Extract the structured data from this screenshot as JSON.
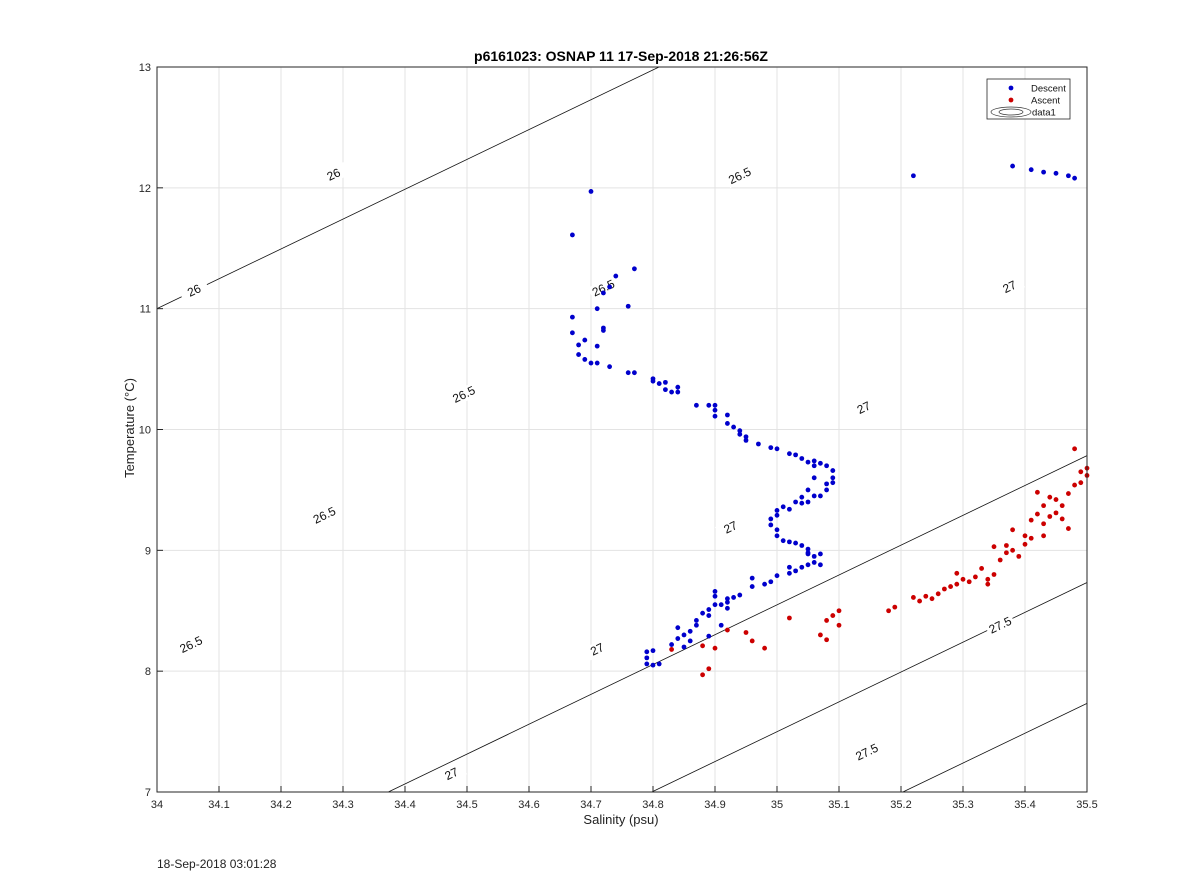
{
  "chart_data": {
    "type": "scatter",
    "title": "p6161023: OSNAP 11 17-Sep-2018 21:26:56Z",
    "xlabel": "Salinity (psu)",
    "ylabel": "Temperature (°C)",
    "xlim": [
      34,
      35.5
    ],
    "ylim": [
      7,
      13
    ],
    "xticks": [
      34,
      34.1,
      34.2,
      34.3,
      34.4,
      34.5,
      34.6,
      34.7,
      34.8,
      34.9,
      35,
      35.1,
      35.2,
      35.3,
      35.4,
      35.5
    ],
    "xtick_labels": [
      "34",
      "34.1",
      "34.2",
      "34.3",
      "34.4",
      "34.5",
      "34.6",
      "34.7",
      "34.8",
      "34.9",
      "35",
      "35.1",
      "35.2",
      "35.3",
      "35.4",
      "35.5"
    ],
    "yticks": [
      7,
      8,
      9,
      10,
      11,
      12,
      13
    ],
    "ytick_labels": [
      "7",
      "8",
      "9",
      "10",
      "11",
      "12",
      "13"
    ],
    "grid": true,
    "legend_position": "top-right",
    "legend": [
      "Descent",
      "Ascent",
      "data1"
    ],
    "series": [
      {
        "name": "Descent",
        "color": "#0000cc",
        "points": [
          [
            34.67,
            11.61
          ],
          [
            34.7,
            11.97
          ],
          [
            34.67,
            10.93
          ],
          [
            34.67,
            10.8
          ],
          [
            34.68,
            10.7
          ],
          [
            34.68,
            10.62
          ],
          [
            34.69,
            10.58
          ],
          [
            34.7,
            10.55
          ],
          [
            34.69,
            10.74
          ],
          [
            34.71,
            10.69
          ],
          [
            34.71,
            10.55
          ],
          [
            34.72,
            10.82
          ],
          [
            34.72,
            10.84
          ],
          [
            34.73,
            10.52
          ],
          [
            34.71,
            11.0
          ],
          [
            34.72,
            11.13
          ],
          [
            34.73,
            11.18
          ],
          [
            34.74,
            11.27
          ],
          [
            34.76,
            11.02
          ],
          [
            34.77,
            11.33
          ],
          [
            34.76,
            10.47
          ],
          [
            34.77,
            10.47
          ],
          [
            34.8,
            10.42
          ],
          [
            34.8,
            10.4
          ],
          [
            34.81,
            10.38
          ],
          [
            34.82,
            10.39
          ],
          [
            34.82,
            10.33
          ],
          [
            34.83,
            10.31
          ],
          [
            34.84,
            10.35
          ],
          [
            34.84,
            10.31
          ],
          [
            34.87,
            10.2
          ],
          [
            34.89,
            10.2
          ],
          [
            34.9,
            10.2
          ],
          [
            34.9,
            10.16
          ],
          [
            34.9,
            10.11
          ],
          [
            34.92,
            10.12
          ],
          [
            34.92,
            10.05
          ],
          [
            34.93,
            10.02
          ],
          [
            34.94,
            9.99
          ],
          [
            34.94,
            9.96
          ],
          [
            34.95,
            9.94
          ],
          [
            34.95,
            9.91
          ],
          [
            34.97,
            9.88
          ],
          [
            34.99,
            9.85
          ],
          [
            35.0,
            9.84
          ],
          [
            35.02,
            9.8
          ],
          [
            35.03,
            9.79
          ],
          [
            35.04,
            9.76
          ],
          [
            35.05,
            9.73
          ],
          [
            35.06,
            9.7
          ],
          [
            35.06,
            9.74
          ],
          [
            35.07,
            9.72
          ],
          [
            35.08,
            9.7
          ],
          [
            35.09,
            9.66
          ],
          [
            35.09,
            9.6
          ],
          [
            35.09,
            9.56
          ],
          [
            35.08,
            9.55
          ],
          [
            35.08,
            9.5
          ],
          [
            35.07,
            9.45
          ],
          [
            35.06,
            9.6
          ],
          [
            35.06,
            9.45
          ],
          [
            35.05,
            9.5
          ],
          [
            35.05,
            9.4
          ],
          [
            35.04,
            9.44
          ],
          [
            35.04,
            9.39
          ],
          [
            35.03,
            9.4
          ],
          [
            35.02,
            9.34
          ],
          [
            35.01,
            9.36
          ],
          [
            35.0,
            9.33
          ],
          [
            35.0,
            9.29
          ],
          [
            34.99,
            9.26
          ],
          [
            34.99,
            9.21
          ],
          [
            35.0,
            9.17
          ],
          [
            35.0,
            9.12
          ],
          [
            35.01,
            9.08
          ],
          [
            35.02,
            9.07
          ],
          [
            35.03,
            9.06
          ],
          [
            35.04,
            9.04
          ],
          [
            35.05,
            9.01
          ],
          [
            35.05,
            8.97
          ],
          [
            35.06,
            8.95
          ],
          [
            35.06,
            8.9
          ],
          [
            35.05,
            8.88
          ],
          [
            35.04,
            8.86
          ],
          [
            35.03,
            8.83
          ],
          [
            35.02,
            8.81
          ],
          [
            35.02,
            8.86
          ],
          [
            35.07,
            8.97
          ],
          [
            35.07,
            8.88
          ],
          [
            35.05,
            8.98
          ],
          [
            35.0,
            8.79
          ],
          [
            34.99,
            8.74
          ],
          [
            34.98,
            8.72
          ],
          [
            34.96,
            8.7
          ],
          [
            34.96,
            8.77
          ],
          [
            34.94,
            8.63
          ],
          [
            34.93,
            8.61
          ],
          [
            34.92,
            8.57
          ],
          [
            34.92,
            8.52
          ],
          [
            34.92,
            8.6
          ],
          [
            34.91,
            8.55
          ],
          [
            34.9,
            8.66
          ],
          [
            34.9,
            8.62
          ],
          [
            34.9,
            8.55
          ],
          [
            34.89,
            8.51
          ],
          [
            34.89,
            8.46
          ],
          [
            34.88,
            8.48
          ],
          [
            34.87,
            8.42
          ],
          [
            34.87,
            8.38
          ],
          [
            34.86,
            8.33
          ],
          [
            34.85,
            8.3
          ],
          [
            34.84,
            8.27
          ],
          [
            34.85,
            8.2
          ],
          [
            34.84,
            8.36
          ],
          [
            34.83,
            8.22
          ],
          [
            34.79,
            8.11
          ],
          [
            34.79,
            8.06
          ],
          [
            34.8,
            8.05
          ],
          [
            34.81,
            8.06
          ],
          [
            34.8,
            8.17
          ],
          [
            34.79,
            8.16
          ],
          [
            34.86,
            8.25
          ],
          [
            34.89,
            8.29
          ],
          [
            34.91,
            8.38
          ],
          [
            35.22,
            12.1
          ],
          [
            35.38,
            12.18
          ],
          [
            35.41,
            12.15
          ],
          [
            35.43,
            12.13
          ],
          [
            35.45,
            12.12
          ],
          [
            35.47,
            12.1
          ],
          [
            35.48,
            12.08
          ]
        ]
      },
      {
        "name": "Ascent",
        "color": "#cc0000",
        "points": [
          [
            34.83,
            8.18
          ],
          [
            34.88,
            8.21
          ],
          [
            34.88,
            7.97
          ],
          [
            34.89,
            8.02
          ],
          [
            34.9,
            8.19
          ],
          [
            34.92,
            8.34
          ],
          [
            34.95,
            8.32
          ],
          [
            34.96,
            8.25
          ],
          [
            34.98,
            8.19
          ],
          [
            35.02,
            8.44
          ],
          [
            35.07,
            8.3
          ],
          [
            35.08,
            8.26
          ],
          [
            35.08,
            8.42
          ],
          [
            35.09,
            8.46
          ],
          [
            35.1,
            8.38
          ],
          [
            35.1,
            8.5
          ],
          [
            35.18,
            8.5
          ],
          [
            35.19,
            8.53
          ],
          [
            35.22,
            8.61
          ],
          [
            35.23,
            8.58
          ],
          [
            35.24,
            8.62
          ],
          [
            35.25,
            8.6
          ],
          [
            35.26,
            8.64
          ],
          [
            35.27,
            8.68
          ],
          [
            35.28,
            8.7
          ],
          [
            35.29,
            8.72
          ],
          [
            35.29,
            8.81
          ],
          [
            35.3,
            8.76
          ],
          [
            35.31,
            8.74
          ],
          [
            35.32,
            8.78
          ],
          [
            35.33,
            8.85
          ],
          [
            35.34,
            8.76
          ],
          [
            35.34,
            8.72
          ],
          [
            35.35,
            8.8
          ],
          [
            35.35,
            9.03
          ],
          [
            35.36,
            8.92
          ],
          [
            35.37,
            8.98
          ],
          [
            35.37,
            9.04
          ],
          [
            35.38,
            9.0
          ],
          [
            35.38,
            9.17
          ],
          [
            35.39,
            8.95
          ],
          [
            35.4,
            9.05
          ],
          [
            35.4,
            9.12
          ],
          [
            35.41,
            9.1
          ],
          [
            35.41,
            9.25
          ],
          [
            35.42,
            9.3
          ],
          [
            35.42,
            9.48
          ],
          [
            35.43,
            9.37
          ],
          [
            35.43,
            9.22
          ],
          [
            35.43,
            9.12
          ],
          [
            35.44,
            9.44
          ],
          [
            35.44,
            9.28
          ],
          [
            35.45,
            9.31
          ],
          [
            35.45,
            9.42
          ],
          [
            35.46,
            9.37
          ],
          [
            35.46,
            9.26
          ],
          [
            35.47,
            9.18
          ],
          [
            35.47,
            9.47
          ],
          [
            35.48,
            9.54
          ],
          [
            35.48,
            9.84
          ],
          [
            35.49,
            9.56
          ],
          [
            35.49,
            9.65
          ],
          [
            35.5,
            9.62
          ],
          [
            35.5,
            9.68
          ]
        ]
      }
    ],
    "contours": [
      {
        "level": 26,
        "labels": [
          "26",
          "26"
        ]
      },
      {
        "level": 26.5,
        "labels": [
          "26.5",
          "26.5",
          "26.5",
          "26.5",
          "26.5"
        ]
      },
      {
        "level": 27,
        "labels": [
          "27",
          "27",
          "27",
          "27",
          "27"
        ]
      },
      {
        "level": 27.5,
        "labels": [
          "27.5",
          "27.5"
        ]
      }
    ]
  },
  "footer": {
    "timestamp": "18-Sep-2018 03:01:28"
  }
}
